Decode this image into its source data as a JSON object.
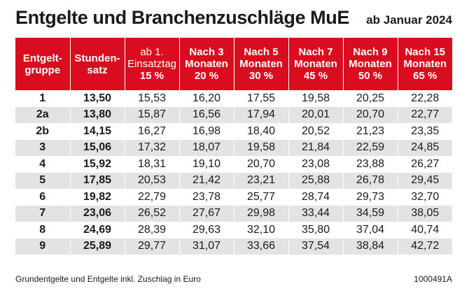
{
  "title": "Entgelte und Branchenzuschläge MuE",
  "subtitle": "ab Januar 2024",
  "headers": [
    {
      "line1": "Entgelt-",
      "line2": "gruppe",
      "line3": ""
    },
    {
      "line1": "Stunden-",
      "line2": "satz",
      "line3": ""
    },
    {
      "line1": "ab 1.",
      "line2": "Einsatztag",
      "line3": "15 %"
    },
    {
      "line1": "Nach 3",
      "line2": "Monaten",
      "line3": "20 %"
    },
    {
      "line1": "Nach 5",
      "line2": "Monaten",
      "line3": "30 %"
    },
    {
      "line1": "Nach 7",
      "line2": "Monaten",
      "line3": "45 %"
    },
    {
      "line1": "Nach 9",
      "line2": "Monaten",
      "line3": "50 %"
    },
    {
      "line1": "Nach 15",
      "line2": "Monaten",
      "line3": "65 %"
    }
  ],
  "rows": [
    [
      "1",
      "13,50",
      "15,53",
      "16,20",
      "17,55",
      "19,58",
      "20,25",
      "22,28"
    ],
    [
      "2a",
      "13,80",
      "15,87",
      "16,56",
      "17,94",
      "20,01",
      "20,70",
      "22,77"
    ],
    [
      "2b",
      "14,15",
      "16,27",
      "16,98",
      "18,40",
      "20,52",
      "21,23",
      "23,35"
    ],
    [
      "3",
      "15,06",
      "17,32",
      "18,07",
      "19,58",
      "21,84",
      "22,59",
      "24,85"
    ],
    [
      "4",
      "15,92",
      "18,31",
      "19,10",
      "20,70",
      "23,08",
      "23,88",
      "26,27"
    ],
    [
      "5",
      "17,85",
      "20,53",
      "21,42",
      "23,21",
      "25,88",
      "26,78",
      "29,45"
    ],
    [
      "6",
      "19,82",
      "22,79",
      "23,78",
      "25,77",
      "28,74",
      "29,73",
      "32,70"
    ],
    [
      "7",
      "23,06",
      "26,52",
      "27,67",
      "29,98",
      "33,44",
      "34,59",
      "38,05"
    ],
    [
      "8",
      "24,69",
      "28,39",
      "29,63",
      "32,10",
      "35,80",
      "37,04",
      "40,74"
    ],
    [
      "9",
      "25,89",
      "29,77",
      "31,07",
      "33,66",
      "37,54",
      "38,84",
      "42,72"
    ]
  ],
  "footnote": "Grundentgelte und Entgelte inkl. Zuschlag in Euro",
  "code": "1000491A",
  "colors": {
    "header_bg": "#d90d1f",
    "stripe": "#e3e3e3"
  }
}
